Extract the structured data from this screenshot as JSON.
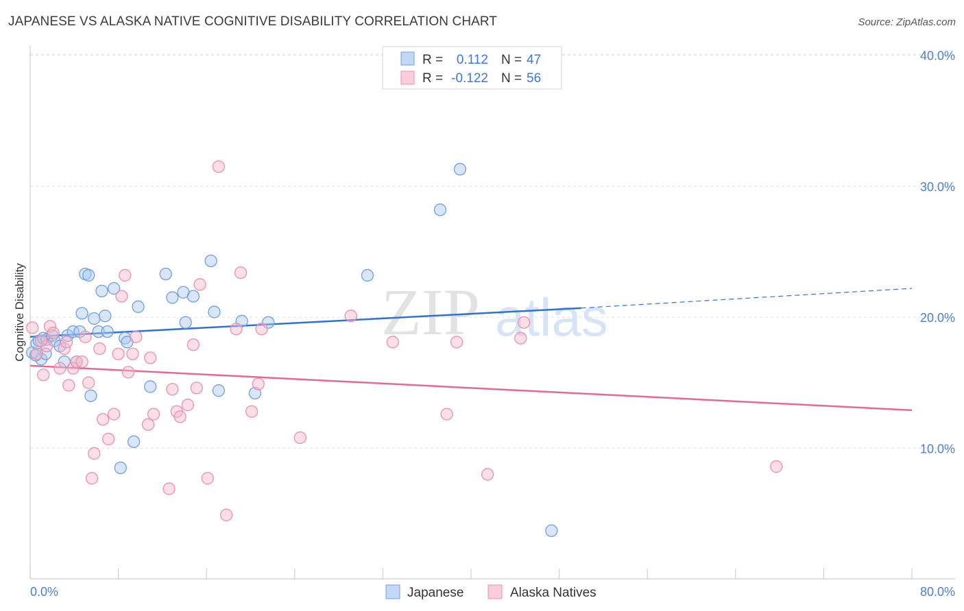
{
  "header": {
    "title": "JAPANESE VS ALASKA NATIVE COGNITIVE DISABILITY CORRELATION CHART",
    "source": "Source: ZipAtlas.com"
  },
  "watermark": {
    "zip": "ZIP",
    "atlas": "atlas"
  },
  "colors": {
    "japanese_fill": "#a9c8f0",
    "japanese_stroke": "#6f9fe0",
    "japanese_line": "#2f72d0",
    "alaska_fill": "#f6b9ca",
    "alaska_stroke": "#ec8fab",
    "alaska_line": "#e46a94",
    "tick_label": "#4a7fd0",
    "grid": "#dedede"
  },
  "chart_data": {
    "type": "scatter",
    "title": "JAPANESE VS ALASKA NATIVE COGNITIVE DISABILITY CORRELATION CHART",
    "xlabel": "",
    "ylabel": "Cognitive Disability",
    "xlim": [
      0,
      80
    ],
    "ylim": [
      0,
      41
    ],
    "x_tick_labels": [
      "0.0%",
      "80.0%"
    ],
    "y_ticks": [
      10,
      20,
      30,
      40
    ],
    "y_tick_labels": [
      "10.0%",
      "20.0%",
      "30.0%",
      "40.0%"
    ],
    "grid": true,
    "legend_position": "top-center",
    "stats": [
      {
        "r_label": "R =",
        "r_value": "0.112",
        "n_label": "N =",
        "n_value": "47"
      },
      {
        "r_label": "R =",
        "r_value": "-0.122",
        "n_label": "N =",
        "n_value": "56"
      }
    ],
    "series": [
      {
        "name": "Japanese",
        "trend": {
          "x_start": 0,
          "y_start": 18.5,
          "x_solid_end": 50,
          "y_solid_end": 20.7,
          "x_end": 80,
          "y_end": 22.2
        },
        "points": [
          [
            0.2,
            17.3
          ],
          [
            0.6,
            18.0
          ],
          [
            0.8,
            18.2
          ],
          [
            1.0,
            16.8
          ],
          [
            1.2,
            18.4
          ],
          [
            1.4,
            17.2
          ],
          [
            1.5,
            18.3
          ],
          [
            2.0,
            18.6
          ],
          [
            2.2,
            18.2
          ],
          [
            2.7,
            17.8
          ],
          [
            3.1,
            16.6
          ],
          [
            3.4,
            18.6
          ],
          [
            3.9,
            18.9
          ],
          [
            4.2,
            16.6
          ],
          [
            4.5,
            18.9
          ],
          [
            4.7,
            20.3
          ],
          [
            5.0,
            23.3
          ],
          [
            5.3,
            23.2
          ],
          [
            5.5,
            14.0
          ],
          [
            5.8,
            19.9
          ],
          [
            6.2,
            18.9
          ],
          [
            6.5,
            22.0
          ],
          [
            6.8,
            20.1
          ],
          [
            7.0,
            18.9
          ],
          [
            7.6,
            22.2
          ],
          [
            8.2,
            8.5
          ],
          [
            8.6,
            18.4
          ],
          [
            8.8,
            18.1
          ],
          [
            9.4,
            10.5
          ],
          [
            9.8,
            20.8
          ],
          [
            10.9,
            14.7
          ],
          [
            12.3,
            23.3
          ],
          [
            12.9,
            21.5
          ],
          [
            13.9,
            21.9
          ],
          [
            14.1,
            19.6
          ],
          [
            14.8,
            21.6
          ],
          [
            16.4,
            24.3
          ],
          [
            16.7,
            20.4
          ],
          [
            17.1,
            14.4
          ],
          [
            19.2,
            19.7
          ],
          [
            20.4,
            14.2
          ],
          [
            21.6,
            19.6
          ],
          [
            30.6,
            23.2
          ],
          [
            37.2,
            28.2
          ],
          [
            39.0,
            31.3
          ],
          [
            47.3,
            3.7
          ],
          [
            0.5,
            17.1
          ]
        ]
      },
      {
        "name": "Alaska Natives",
        "trend": {
          "x_start": 0,
          "y_start": 16.3,
          "x_end": 80,
          "y_end": 12.9
        },
        "points": [
          [
            0.2,
            19.2
          ],
          [
            0.6,
            17.2
          ],
          [
            1.2,
            15.6
          ],
          [
            1.5,
            17.8
          ],
          [
            1.8,
            19.3
          ],
          [
            2.1,
            18.8
          ],
          [
            2.7,
            16.1
          ],
          [
            3.1,
            17.6
          ],
          [
            3.5,
            14.8
          ],
          [
            3.9,
            16.1
          ],
          [
            4.2,
            16.6
          ],
          [
            4.7,
            16.6
          ],
          [
            5.0,
            18.5
          ],
          [
            5.3,
            15.0
          ],
          [
            5.6,
            7.7
          ],
          [
            5.8,
            9.6
          ],
          [
            6.3,
            17.6
          ],
          [
            6.6,
            12.2
          ],
          [
            7.1,
            10.7
          ],
          [
            7.6,
            12.6
          ],
          [
            8.0,
            17.2
          ],
          [
            8.3,
            21.6
          ],
          [
            8.6,
            23.2
          ],
          [
            8.9,
            15.8
          ],
          [
            9.3,
            17.2
          ],
          [
            9.6,
            18.5
          ],
          [
            10.7,
            11.8
          ],
          [
            10.9,
            16.9
          ],
          [
            11.2,
            12.6
          ],
          [
            12.6,
            6.9
          ],
          [
            12.9,
            14.5
          ],
          [
            13.3,
            12.8
          ],
          [
            13.6,
            12.4
          ],
          [
            14.3,
            13.3
          ],
          [
            14.8,
            17.9
          ],
          [
            15.1,
            14.6
          ],
          [
            15.4,
            22.5
          ],
          [
            16.1,
            7.7
          ],
          [
            17.1,
            31.5
          ],
          [
            17.8,
            4.9
          ],
          [
            18.7,
            19.1
          ],
          [
            19.1,
            23.4
          ],
          [
            20.1,
            12.8
          ],
          [
            20.7,
            14.9
          ],
          [
            21.0,
            19.1
          ],
          [
            24.5,
            10.8
          ],
          [
            29.1,
            20.1
          ],
          [
            32.9,
            18.1
          ],
          [
            37.8,
            12.6
          ],
          [
            38.7,
            18.1
          ],
          [
            41.5,
            8.0
          ],
          [
            44.5,
            18.4
          ],
          [
            44.8,
            19.6
          ],
          [
            67.7,
            8.6
          ],
          [
            1.0,
            18.2
          ],
          [
            3.3,
            18.1
          ]
        ]
      }
    ]
  },
  "bottom_legend": {
    "items": [
      "Japanese",
      "Alaska Natives"
    ]
  }
}
